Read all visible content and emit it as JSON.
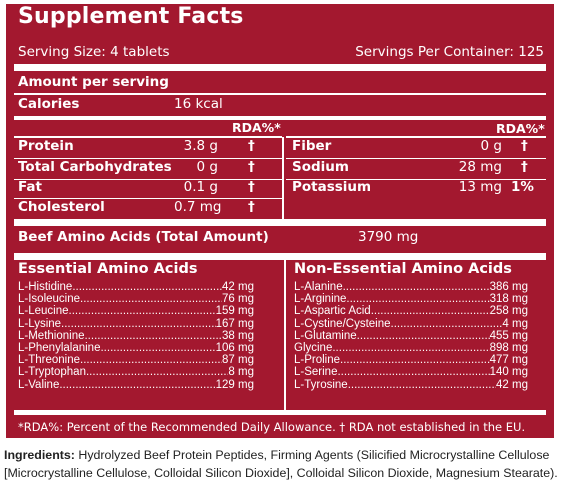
{
  "header": {
    "title": "Supplement Facts",
    "serving_size": "Serving Size: 4 tablets",
    "servings_per_container": "Servings Per Container: 125"
  },
  "amount_per_serving": "Amount per serving",
  "calories": {
    "label": "Calories",
    "value": "16 kcal"
  },
  "rda_header": "RDA%*",
  "nutrients_left": [
    {
      "label": "Protein",
      "amount": "3.8 g",
      "rda": "†"
    },
    {
      "label": "Total Carbohydrates",
      "amount": "0 g",
      "rda": "†"
    },
    {
      "label": "Fat",
      "amount": "0.1 g",
      "rda": "†"
    },
    {
      "label": "Cholesterol",
      "amount": "0.7 mg",
      "rda": "†"
    }
  ],
  "nutrients_right": [
    {
      "label": "Fiber",
      "amount": "0 g",
      "rda": "†"
    },
    {
      "label": "Sodium",
      "amount": "28 mg",
      "rda": "†"
    },
    {
      "label": "Potassium",
      "amount": "13 mg",
      "rda": "1%"
    }
  ],
  "beef_amino": {
    "label": "Beef Amino Acids (Total Amount)",
    "value": "3790 mg"
  },
  "essential": {
    "heading": "Essential Amino Acids",
    "items": [
      {
        "name": "L-Histidine",
        "amount": "42 mg"
      },
      {
        "name": "L-Isoleucine",
        "amount": "76 mg"
      },
      {
        "name": "L-Leucine",
        "amount": "159 mg"
      },
      {
        "name": "L-Lysine",
        "amount": "167 mg"
      },
      {
        "name": "L-Methionine",
        "amount": "38 mg"
      },
      {
        "name": "L-Phenylalanine",
        "amount": "106 mg"
      },
      {
        "name": "L-Threonine",
        "amount": "87 mg"
      },
      {
        "name": "L-Tryptophan",
        "amount": "8 mg"
      },
      {
        "name": "L-Valine",
        "amount": "129 mg"
      }
    ]
  },
  "non_essential": {
    "heading": "Non-Essential Amino Acids",
    "items": [
      {
        "name": "L-Alanine",
        "amount": "386 mg"
      },
      {
        "name": "L-Arginine",
        "amount": "318 mg"
      },
      {
        "name": "L-Aspartic Acid",
        "amount": "258 mg"
      },
      {
        "name": "L-Cystine/Cysteine",
        "amount": "4 mg"
      },
      {
        "name": "L-Glutamine",
        "amount": "455 mg"
      },
      {
        "name": "Glycine",
        "amount": "898 mg"
      },
      {
        "name": "L-Proline",
        "amount": "477 mg"
      },
      {
        "name": "L-Serine",
        "amount": "140 mg"
      },
      {
        "name": "L-Tyrosine",
        "amount": "42 mg"
      }
    ]
  },
  "footnote": "*RDA%: Percent of the Recommended Daily Allowance. † RDA not established in the EU.",
  "ingredients": {
    "label": "Ingredients:",
    "text": " Hydrolyzed Beef Protein Peptides, Firming Agents (Silicified Microcrystalline Cellulose [Microcrystalline Cellulose, Colloidal Silicon Dioxide], Colloidal Silicon Dioxide, Magnesium Stearate)."
  },
  "colors": {
    "panel": "#a3182f",
    "text_on_panel": "#ffffff",
    "ingredients_text": "#222222"
  }
}
